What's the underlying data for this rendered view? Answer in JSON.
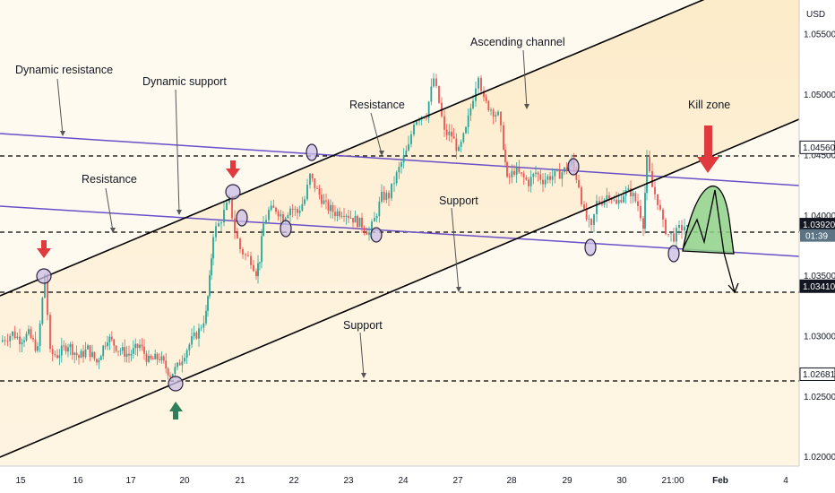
{
  "chart_data": {
    "type": "candlestick",
    "currency": "USD",
    "x_ticks": [
      "15",
      "16",
      "17",
      "20",
      "21",
      "22",
      "23",
      "24",
      "27",
      "28",
      "29",
      "30",
      "21:00",
      "Feb",
      "4"
    ],
    "y_ticks": [
      "1.05500",
      "1.05000",
      "1.04500",
      "1.04000",
      "1.03500",
      "1.03000",
      "1.02500",
      "1.02000"
    ],
    "ylim": [
      1.0192,
      1.0578
    ],
    "price_levels": [
      {
        "label": "1.04560",
        "value": 1.0456,
        "style": "plain"
      },
      {
        "label": "1.03920",
        "value": 1.0392,
        "style": "dark"
      },
      {
        "label": "1.03410",
        "value": 1.0341,
        "style": "dark"
      },
      {
        "label": "1.02681",
        "value": 1.02681,
        "style": "plain"
      }
    ],
    "last_price_badge": {
      "price": "1.03860",
      "countdown": "01:39",
      "color": "#5b7383"
    },
    "annotations": [
      "Dynamic resistance",
      "Dynamic support",
      "Resistance",
      "Ascending channel",
      "Kill zone",
      "Resistance",
      "Support",
      "Support"
    ],
    "colors": {
      "up": "#26a69a",
      "down": "#ef5350",
      "trendline": "#6a4fc8",
      "channel": "#000000",
      "zone_fill": "#fde9c0",
      "kill_zone": "#8fd18a",
      "arrow_red": "#e03a3f",
      "arrow_green": "#2e7d5b",
      "touch_circle": "#cbbde6"
    },
    "candle_path": [
      [
        0,
        1.0295
      ],
      [
        14,
        1.0302
      ],
      [
        22,
        1.0297
      ],
      [
        32,
        1.0301
      ],
      [
        42,
        1.0288
      ],
      [
        50,
        1.0351
      ],
      [
        56,
        1.0285
      ],
      [
        64,
        1.0284
      ],
      [
        76,
        1.0293
      ],
      [
        88,
        1.0282
      ],
      [
        98,
        1.0289
      ],
      [
        108,
        1.0278
      ],
      [
        120,
        1.0299
      ],
      [
        132,
        1.0289
      ],
      [
        144,
        1.0284
      ],
      [
        156,
        1.0292
      ],
      [
        166,
        1.0279
      ],
      [
        178,
        1.0282
      ],
      [
        190,
        1.0268
      ],
      [
        198,
        1.0274
      ],
      [
        206,
        1.0286
      ],
      [
        214,
        1.0296
      ],
      [
        222,
        1.0304
      ],
      [
        230,
        1.0318
      ],
      [
        234,
        1.0346
      ],
      [
        238,
        1.0385
      ],
      [
        244,
        1.0392
      ],
      [
        250,
        1.0402
      ],
      [
        256,
        1.0412
      ],
      [
        262,
        1.0387
      ],
      [
        268,
        1.0372
      ],
      [
        274,
        1.0366
      ],
      [
        280,
        1.0363
      ],
      [
        286,
        1.0353
      ],
      [
        290,
        1.0364
      ],
      [
        294,
        1.0392
      ],
      [
        300,
        1.0403
      ],
      [
        308,
        1.0405
      ],
      [
        316,
        1.0398
      ],
      [
        324,
        1.0406
      ],
      [
        332,
        1.0402
      ],
      [
        340,
        1.0413
      ],
      [
        346,
        1.0432
      ],
      [
        354,
        1.042
      ],
      [
        364,
        1.0407
      ],
      [
        374,
        1.0402
      ],
      [
        384,
        1.0403
      ],
      [
        394,
        1.0397
      ],
      [
        404,
        1.0392
      ],
      [
        412,
        1.0385
      ],
      [
        418,
        1.0396
      ],
      [
        426,
        1.0415
      ],
      [
        434,
        1.0416
      ],
      [
        440,
        1.0428
      ],
      [
        448,
        1.0443
      ],
      [
        456,
        1.0456
      ],
      [
        462,
        1.0478
      ],
      [
        468,
        1.0482
      ],
      [
        476,
        1.0484
      ],
      [
        484,
        1.0513
      ],
      [
        490,
        1.0493
      ],
      [
        496,
        1.0468
      ],
      [
        504,
        1.0466
      ],
      [
        512,
        1.0452
      ],
      [
        520,
        1.047
      ],
      [
        528,
        1.0498
      ],
      [
        534,
        1.0518
      ],
      [
        540,
        1.0494
      ],
      [
        548,
        1.0488
      ],
      [
        556,
        1.0482
      ],
      [
        562,
        1.0458
      ],
      [
        566,
        1.0428
      ],
      [
        574,
        1.0437
      ],
      [
        582,
        1.0432
      ],
      [
        590,
        1.0427
      ],
      [
        598,
        1.0435
      ],
      [
        606,
        1.0429
      ],
      [
        614,
        1.0432
      ],
      [
        622,
        1.0433
      ],
      [
        630,
        1.0437
      ],
      [
        638,
        1.0444
      ],
      [
        646,
        1.0425
      ],
      [
        652,
        1.0401
      ],
      [
        660,
        1.0388
      ],
      [
        666,
        1.041
      ],
      [
        672,
        1.0412
      ],
      [
        680,
        1.0418
      ],
      [
        688,
        1.0408
      ],
      [
        696,
        1.0418
      ],
      [
        704,
        1.0419
      ],
      [
        712,
        1.0408
      ],
      [
        718,
        1.0393
      ],
      [
        722,
        1.0444
      ],
      [
        728,
        1.0423
      ],
      [
        734,
        1.0412
      ],
      [
        740,
        1.0392
      ],
      [
        746,
        1.0384
      ],
      [
        752,
        1.0382
      ],
      [
        758,
        1.0388
      ],
      [
        764,
        1.0391
      ],
      [
        770,
        1.0386
      ]
    ]
  }
}
